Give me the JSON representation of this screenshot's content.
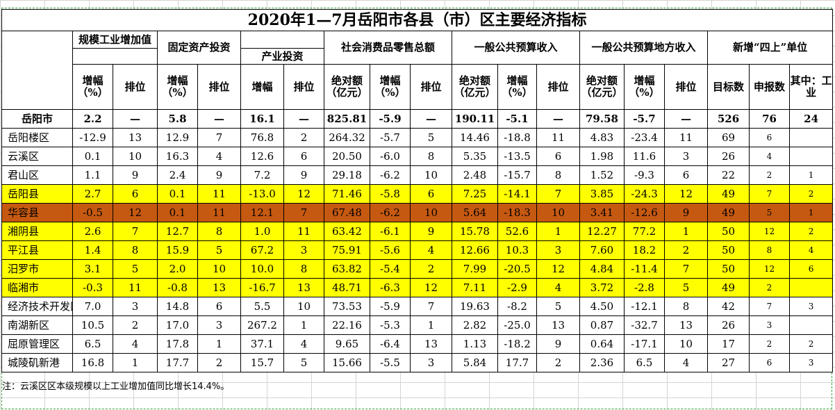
{
  "title": "2020年1—7月岳阳市各县（市）区主要经济指标",
  "groups": {
    "g1": "规模工业增加值",
    "g2": "固定资产投资",
    "g2b": "产业投资",
    "g3": "社会消费品零售总额",
    "g4": "一般公共预算收入",
    "g5": "一般公共预算地方收入",
    "g6": "新增“四上”单位"
  },
  "sub": {
    "zengfu": "增幅（%）",
    "paiwei": "排位",
    "zengfu_plain": "增幅",
    "jueduie": "绝对额（亿元）",
    "mubiao": "目标数",
    "shenbao": "申报数",
    "qizhong": "其中：工业"
  },
  "rows": [
    {
      "name": "岳阳市",
      "v": [
        "2.2",
        "—",
        "5.8",
        "—",
        "16.1",
        "—",
        "825.81",
        "-5.9",
        "—",
        "190.11",
        "-5.1",
        "—",
        "79.58",
        "-5.7",
        "—",
        "526",
        "76",
        "24"
      ]
    },
    {
      "name": "岳阳楼区",
      "v": [
        "-12.9",
        "13",
        "12.9",
        "7",
        "76.8",
        "2",
        "264.32",
        "-5.7",
        "5",
        "14.46",
        "-18.8",
        "11",
        "4.83",
        "-23.4",
        "11",
        "69",
        "6",
        ""
      ]
    },
    {
      "name": "云溪区",
      "v": [
        "0.1",
        "10",
        "16.3",
        "4",
        "12.6",
        "6",
        "20.50",
        "-6.0",
        "8",
        "5.35",
        "-13.5",
        "6",
        "1.98",
        "11.6",
        "3",
        "26",
        "4",
        ""
      ]
    },
    {
      "name": "君山区",
      "v": [
        "1.1",
        "9",
        "2.4",
        "9",
        "7.2",
        "9",
        "29.18",
        "-6.2",
        "10",
        "2.48",
        "-15.7",
        "8",
        "1.52",
        "-9.3",
        "6",
        "22",
        "2",
        "1"
      ]
    },
    {
      "name": "岳阳县",
      "v": [
        "2.7",
        "6",
        "0.1",
        "11",
        "-13.0",
        "12",
        "71.46",
        "-5.8",
        "6",
        "7.25",
        "-14.1",
        "7",
        "3.85",
        "-24.3",
        "12",
        "49",
        "7",
        "2"
      ]
    },
    {
      "name": "华容县",
      "v": [
        "-0.5",
        "12",
        "0.1",
        "11",
        "12.1",
        "7",
        "67.48",
        "-6.2",
        "10",
        "5.64",
        "-18.3",
        "10",
        "3.41",
        "-12.6",
        "9",
        "49",
        "5",
        "1"
      ]
    },
    {
      "name": "湘阴县",
      "v": [
        "2.6",
        "7",
        "12.7",
        "8",
        "1.0",
        "11",
        "63.42",
        "-6.1",
        "9",
        "15.78",
        "52.6",
        "1",
        "12.27",
        "77.2",
        "1",
        "50",
        "12",
        "2"
      ]
    },
    {
      "name": "平江县",
      "v": [
        "1.4",
        "8",
        "15.9",
        "5",
        "67.2",
        "3",
        "75.91",
        "-5.6",
        "4",
        "12.66",
        "10.3",
        "3",
        "7.60",
        "18.2",
        "2",
        "50",
        "8",
        "4"
      ]
    },
    {
      "name": "汨罗市",
      "v": [
        "3.1",
        "5",
        "2.0",
        "10",
        "10.0",
        "8",
        "63.82",
        "-5.4",
        "2",
        "7.99",
        "-20.5",
        "12",
        "4.84",
        "-11.4",
        "7",
        "50",
        "12",
        "6"
      ]
    },
    {
      "name": "临湘市",
      "v": [
        "-0.3",
        "11",
        "-0.8",
        "13",
        "-16.7",
        "13",
        "48.71",
        "-6.3",
        "12",
        "7.11",
        "-2.9",
        "4",
        "3.72",
        "-2.8",
        "5",
        "49",
        "2",
        ""
      ]
    },
    {
      "name": "经济技术开发区",
      "v": [
        "7.0",
        "3",
        "14.8",
        "6",
        "5.5",
        "10",
        "73.53",
        "-5.9",
        "7",
        "19.63",
        "-8.2",
        "5",
        "4.50",
        "-12.1",
        "8",
        "42",
        "7",
        "3"
      ]
    },
    {
      "name": "南湖新区",
      "v": [
        "10.5",
        "2",
        "17.0",
        "3",
        "267.2",
        "1",
        "22.16",
        "-5.3",
        "1",
        "2.82",
        "-25.0",
        "13",
        "0.87",
        "-32.7",
        "13",
        "26",
        "3",
        ""
      ]
    },
    {
      "name": "屈原管理区",
      "v": [
        "6.5",
        "4",
        "17.8",
        "1",
        "37.1",
        "4",
        "9.65",
        "-6.4",
        "13",
        "1.13",
        "-18.2",
        "9",
        "0.64",
        "-17.1",
        "10",
        "17",
        "2",
        "2"
      ]
    },
    {
      "name": "城陵矶新港",
      "v": [
        "16.8",
        "1",
        "17.7",
        "2",
        "15.7",
        "5",
        "15.66",
        "-5.5",
        "3",
        "5.84",
        "17.7",
        "2",
        "2.36",
        "6.5",
        "4",
        "27",
        "6",
        "3"
      ]
    }
  ],
  "note": "注：云溪区区本级规模以上工业增加值同比增长14.4%。",
  "colors": {
    "highlight": "#ffff00",
    "selected": "#c65911",
    "border": "#000000"
  }
}
